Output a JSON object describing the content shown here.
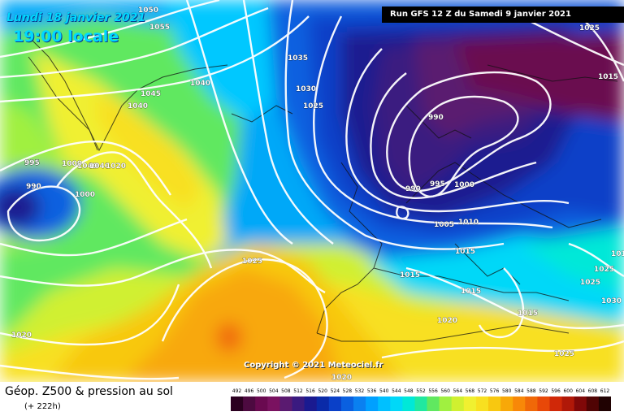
{
  "header": {
    "date_label": "Lundi 18 janvier 2021",
    "time_label": "19:00 locale",
    "run_label": "Run GFS 12 Z du Samedi 9 janvier 2021"
  },
  "copyright": "Copyright © 2021 Meteociel.fr",
  "legend": {
    "title": "Géop. Z500 & pression au sol",
    "subtitle": "(+ 222h)",
    "scale_values": [
      "492",
      "496",
      "500",
      "504",
      "508",
      "512",
      "516",
      "520",
      "524",
      "528",
      "532",
      "536",
      "540",
      "544",
      "548",
      "552",
      "556",
      "560",
      "564",
      "568",
      "572",
      "576",
      "580",
      "584",
      "588",
      "592",
      "596",
      "600",
      "604",
      "608",
      "612"
    ],
    "scale_colors": [
      "#2b0020",
      "#4d0a40",
      "#6a0a50",
      "#7a1260",
      "#5a1a70",
      "#3a1a80",
      "#1a1a90",
      "#0a2aa8",
      "#0a40c8",
      "#0a60e0",
      "#0a80f0",
      "#00a0ff",
      "#00c0ff",
      "#00d8f8",
      "#00e8d8",
      "#20e8a0",
      "#60e860",
      "#a0f040",
      "#d0f030",
      "#f0f030",
      "#f8e020",
      "#f8c810",
      "#f8a808",
      "#f88808",
      "#f06808",
      "#e84808",
      "#d02808",
      "#b01808",
      "#800808",
      "#500404",
      "#200202"
    ]
  },
  "pressure_labels": [
    "1050",
    "1055",
    "1045",
    "1040",
    "1040",
    "1035",
    "1030",
    "1025",
    "1025",
    "1015",
    "990",
    "995",
    "1000",
    "1040",
    "1040",
    "1020",
    "995",
    "990",
    "1000",
    "990",
    "995",
    "1000",
    "1005",
    "1010",
    "1015",
    "1025",
    "1015",
    "1015",
    "1015",
    "1025",
    "1030",
    "1025",
    "1015",
    "1020",
    "1025",
    "1020",
    "1020"
  ],
  "colors": {
    "contour": "#ffffff",
    "date_text": "#00d8ff"
  }
}
